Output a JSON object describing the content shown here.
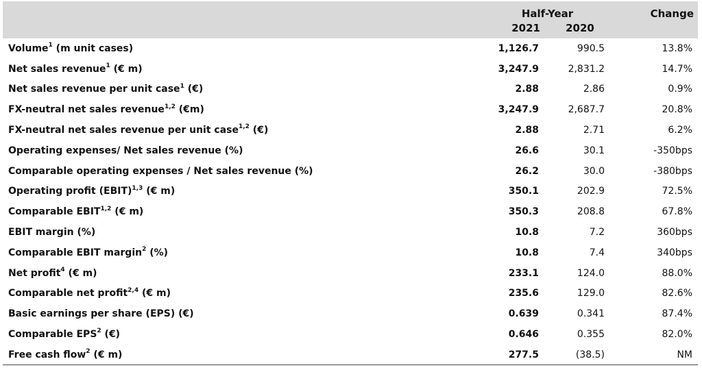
{
  "header": {
    "group_label": "Half-Year",
    "change_label": "Change",
    "year_current": "2021",
    "year_previous": "2020"
  },
  "rows": [
    {
      "label": "Volume",
      "sup": "1",
      "suffix": " (m unit cases)",
      "cur": "1,126.7",
      "prev": "990.5",
      "chg": "13.8%"
    },
    {
      "label": "Net sales revenue",
      "sup": "1",
      "suffix": " (€ m)",
      "cur": "3,247.9",
      "prev": "2,831.2",
      "chg": "14.7%"
    },
    {
      "label": "Net sales revenue per unit case",
      "sup": "1",
      "suffix": " (€)",
      "cur": "2.88",
      "prev": "2.86",
      "chg": "0.9%"
    },
    {
      "label": "FX-neutral net sales revenue",
      "sup": "1,2",
      "suffix": " (€m)",
      "cur": "3,247.9",
      "prev": "2,687.7",
      "chg": "20.8%"
    },
    {
      "label": "FX-neutral net sales revenue per unit case",
      "sup": "1,2",
      "suffix": " (€)",
      "cur": "2.88",
      "prev": "2.71",
      "chg": "6.2%"
    },
    {
      "label": "Operating expenses/ Net sales revenue (%)",
      "sup": "",
      "suffix": "",
      "cur": "26.6",
      "prev": "30.1",
      "chg": "-350bps"
    },
    {
      "label": "Comparable operating expenses / Net sales revenue (%)",
      "sup": "",
      "suffix": "",
      "cur": "26.2",
      "prev": "30.0",
      "chg": "-380bps"
    },
    {
      "label": "Operating profit (EBIT)",
      "sup": "1,3",
      "suffix": " (€ m)",
      "cur": "350.1",
      "prev": "202.9",
      "chg": "72.5%"
    },
    {
      "label": "Comparable EBIT",
      "sup": "1,2",
      "suffix": " (€ m)",
      "cur": "350.3",
      "prev": "208.8",
      "chg": "67.8%"
    },
    {
      "label": "EBIT margin (%)",
      "sup": "",
      "suffix": "",
      "cur": "10.8",
      "prev": "7.2",
      "chg": "360bps"
    },
    {
      "label": "Comparable EBIT margin",
      "sup": "2",
      "suffix": " (%)",
      "cur": "10.8",
      "prev": "7.4",
      "chg": "340bps"
    },
    {
      "label": "Net profit",
      "sup": "4",
      "suffix": " (€ m)",
      "cur": "233.1",
      "prev": "124.0",
      "chg": "88.0%"
    },
    {
      "label": "Comparable net profit",
      "sup": "2,4",
      "suffix": " (€ m)",
      "cur": "235.6",
      "prev": "129.0",
      "chg": "82.6%"
    },
    {
      "label": "Basic earnings per share (EPS) (€)",
      "sup": "",
      "suffix": "",
      "cur": "0.639",
      "prev": "0.341",
      "chg": "87.4%"
    },
    {
      "label": "Comparable EPS",
      "sup": "2",
      "suffix": " (€)",
      "cur": "0.646",
      "prev": "0.355",
      "chg": "82.0%"
    },
    {
      "label": "Free cash flow",
      "sup": "2",
      "suffix": " (€ m)",
      "cur": "277.5",
      "prev": "(38.5)",
      "chg": "NM"
    }
  ],
  "colors": {
    "header_background": "#d9d9d9",
    "text": "#111111",
    "bottom_rule": "#444444"
  }
}
